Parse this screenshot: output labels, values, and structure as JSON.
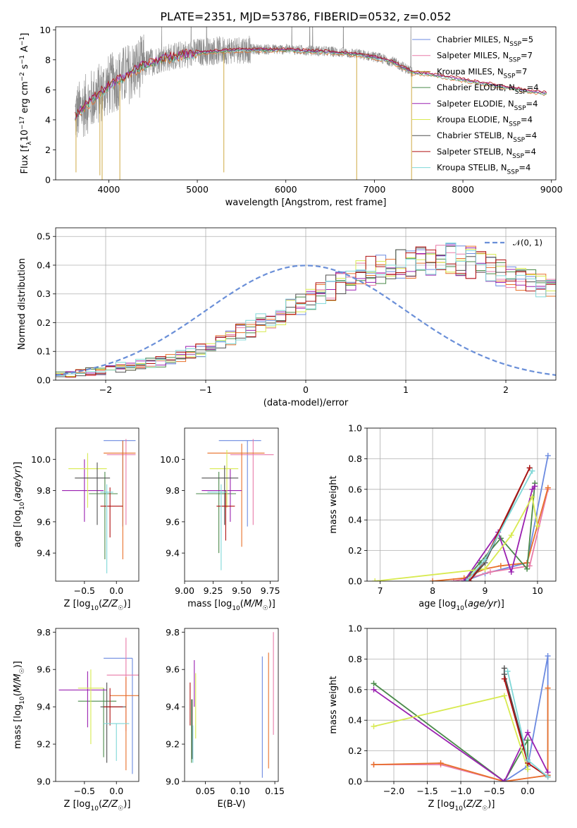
{
  "figure": {
    "title": "PLATE=2351, MJD=53786, FIBERID=0532, z=0.052"
  },
  "series_styles": [
    {
      "name": "Chabrier MILES, N_SSP=5",
      "label": "Chabrier MILES, N",
      "sub": "SSP",
      "tail": "=5",
      "color": "#6b8ae0"
    },
    {
      "name": "Salpeter MILES, N_SSP=7",
      "label": "Salpeter MILES, N",
      "sub": "SSP",
      "tail": "=7",
      "color": "#e87aa8"
    },
    {
      "name": "Kroupa MILES, N_SSP=7",
      "label": "Kroupa MILES, N",
      "sub": "SSP",
      "tail": "=7",
      "color": "#b07a20"
    },
    {
      "name": "Chabrier ELODIE, N_SSP=4",
      "label": "Chabrier ELODIE, N",
      "sub": "SSP",
      "tail": "=4",
      "color": "#4a8a4a"
    },
    {
      "name": "Salpeter ELODIE, N_SSP=4",
      "label": "Salpeter ELODIE, N",
      "sub": "SSP",
      "tail": "=4",
      "color": "#9a20b0"
    },
    {
      "name": "Kroupa ELODIE, N_SSP=4",
      "label": "Kroupa ELODIE, N",
      "sub": "SSP",
      "tail": "=4",
      "color": "#d8ea50"
    },
    {
      "name": "Chabrier STELIB, N_SSP=4",
      "label": "Chabrier STELIB, N",
      "sub": "SSP",
      "tail": "=4",
      "color": "#505050"
    },
    {
      "name": "Salpeter STELIB, N_SSP=4",
      "label": "Salpeter STELIB, N",
      "sub": "SSP",
      "tail": "=4",
      "color": "#b01010"
    },
    {
      "name": "Kroupa STELIB, N_SSP=4",
      "label": "Kroupa STELIB, N",
      "sub": "SSP",
      "tail": "=4",
      "color": "#7fd8d8"
    }
  ],
  "extra_colors": {
    "orange": "#e8702a",
    "data_grey": "#888888",
    "normal_curve": "#6a8fd8"
  },
  "chart_data": [
    {
      "id": "spectrum",
      "type": "line",
      "xlabel": "wavelength [Angstrom, rest frame]",
      "ylabel": "Flux [f_λ10^-17 erg cm^-2 s^-1 A^-1]",
      "xlim": [
        3400,
        9050
      ],
      "ylim": [
        0,
        10.2
      ],
      "xticks": [
        4000,
        5000,
        6000,
        7000,
        8000,
        9000
      ],
      "yticks": [
        0,
        2,
        4,
        6,
        8,
        10
      ],
      "legend": "right",
      "grid": false,
      "data_range": [
        3620,
        7430
      ],
      "continuum_points": {
        "x": [
          3620,
          3700,
          3800,
          3900,
          4000,
          4200,
          4400,
          4600,
          4800,
          5000,
          5200,
          5500,
          6000,
          6500,
          6800,
          7000,
          7200,
          7430
        ],
        "y": [
          4.3,
          4.8,
          5.3,
          5.8,
          6.3,
          7.0,
          7.7,
          8.1,
          8.3,
          8.5,
          8.6,
          8.7,
          8.7,
          8.55,
          8.4,
          8.2,
          7.9,
          7.2
        ]
      },
      "model_extension": {
        "x": [
          7430,
          7600,
          7800,
          8000,
          8200,
          8500,
          8800,
          8950
        ],
        "y": [
          7.2,
          7.1,
          6.9,
          6.7,
          6.5,
          6.2,
          5.9,
          5.8
        ]
      }
    },
    {
      "id": "residual-histogram",
      "type": "step",
      "xlabel": "(data-model)/error",
      "ylabel": "Normed distribution",
      "xlim": [
        -2.5,
        2.5
      ],
      "ylim": [
        0,
        0.53
      ],
      "xticks": [
        -2,
        -1,
        0,
        1,
        2
      ],
      "yticks": [
        0.0,
        0.1,
        0.2,
        0.3,
        0.4,
        0.5
      ],
      "grid": true,
      "legend": "top-right",
      "curve_label": "𝒩(0, 1)",
      "bin_width": 0.1,
      "bins_start": -2.5,
      "base_values": [
        0.02,
        0.022,
        0.025,
        0.03,
        0.035,
        0.04,
        0.045,
        0.05,
        0.055,
        0.06,
        0.065,
        0.075,
        0.085,
        0.095,
        0.105,
        0.115,
        0.13,
        0.145,
        0.165,
        0.18,
        0.2,
        0.21,
        0.22,
        0.245,
        0.265,
        0.28,
        0.3,
        0.32,
        0.345,
        0.36,
        0.37,
        0.38,
        0.385,
        0.39,
        0.4,
        0.405,
        0.41,
        0.42,
        0.43,
        0.425,
        0.42,
        0.41,
        0.4,
        0.39,
        0.38,
        0.37,
        0.36,
        0.35,
        0.33,
        0.31,
        0.29,
        0.27,
        0.25,
        0.23,
        0.21,
        0.19,
        0.17,
        0.155,
        0.14,
        0.12,
        0.105,
        0.09,
        0.08,
        0.07,
        0.06,
        0.05,
        0.045,
        0.04,
        0.035,
        0.03,
        0.025,
        0.022,
        0.02,
        0.018
      ]
    },
    {
      "id": "age-vs-Z",
      "type": "errorbar",
      "xlabel": "Z [log10(Z/Z☉)]",
      "ylabel": "age  [log10(age/yr)]",
      "xlim": [
        -0.95,
        0.35
      ],
      "ylim": [
        9.22,
        10.2
      ],
      "xticks": [
        -0.5,
        0.0
      ],
      "yticks": [
        9.4,
        9.6,
        9.8,
        10.0
      ],
      "points": [
        {
          "x": 0.1,
          "y": 10.12,
          "xerr": [
            0.3,
            0.2
          ],
          "yerr": [
            0.55,
            0.0
          ],
          "series": 0
        },
        {
          "x": 0.15,
          "y": 10.03,
          "xerr": [
            0.3,
            0.15
          ],
          "yerr": [
            0.45,
            0.1
          ],
          "series": 1
        },
        {
          "x": 0.1,
          "y": 10.04,
          "xerr": [
            0.3,
            0.2
          ],
          "yerr": [
            0.68,
            0.08
          ],
          "series": 10
        },
        {
          "x": -0.18,
          "y": 9.78,
          "xerr": [
            0.25,
            0.2
          ],
          "yerr": [
            0.42,
            0.14
          ],
          "series": 3
        },
        {
          "x": -0.5,
          "y": 9.8,
          "xerr": [
            0.35,
            0.3
          ],
          "yerr": [
            0.2,
            0.2
          ],
          "series": 4
        },
        {
          "x": -0.45,
          "y": 9.94,
          "xerr": [
            0.3,
            0.3
          ],
          "yerr": [
            0.25,
            0.1
          ],
          "series": 5
        },
        {
          "x": -0.3,
          "y": 9.88,
          "xerr": [
            0.35,
            0.2
          ],
          "yerr": [
            0.3,
            0.1
          ],
          "series": 6
        },
        {
          "x": -0.1,
          "y": 9.7,
          "xerr": [
            0.15,
            0.2
          ],
          "yerr": [
            0.2,
            0.12
          ],
          "series": 7
        },
        {
          "x": -0.15,
          "y": 9.79,
          "xerr": [
            0.1,
            0.1
          ],
          "yerr": [
            0.52,
            0.05
          ],
          "series": 8
        }
      ]
    },
    {
      "id": "age-vs-mass",
      "type": "errorbar",
      "xlabel": "mass [log10(M/M☉)]",
      "ylabel": "",
      "xlim": [
        9.0,
        9.82
      ],
      "ylim": [
        9.22,
        10.2
      ],
      "xticks": [
        9.0,
        9.25,
        9.5,
        9.75
      ],
      "yticks": [
        9.4,
        9.6,
        9.8,
        10.0
      ],
      "points": [
        {
          "x": 9.55,
          "y": 10.12,
          "xerr": [
            0.25,
            0.12
          ],
          "yerr": [
            0.55,
            0.0
          ],
          "series": 0
        },
        {
          "x": 9.6,
          "y": 10.03,
          "xerr": [
            0.2,
            0.18
          ],
          "yerr": [
            0.45,
            0.1
          ],
          "series": 1
        },
        {
          "x": 9.5,
          "y": 10.04,
          "xerr": [
            0.3,
            0.2
          ],
          "yerr": [
            0.6,
            0.06
          ],
          "series": 10
        },
        {
          "x": 9.3,
          "y": 9.78,
          "xerr": [
            0.2,
            0.15
          ],
          "yerr": [
            0.38,
            0.14
          ],
          "series": 3
        },
        {
          "x": 9.4,
          "y": 9.8,
          "xerr": [
            0.25,
            0.1
          ],
          "yerr": [
            0.2,
            0.14
          ],
          "series": 4
        },
        {
          "x": 9.37,
          "y": 9.94,
          "xerr": [
            0.15,
            0.1
          ],
          "yerr": [
            0.25,
            0.12
          ],
          "series": 5
        },
        {
          "x": 9.35,
          "y": 9.88,
          "xerr": [
            0.2,
            0.12
          ],
          "yerr": [
            0.3,
            0.08
          ],
          "series": 6
        },
        {
          "x": 9.36,
          "y": 9.7,
          "xerr": [
            0.08,
            0.08
          ],
          "yerr": [
            0.22,
            0.1
          ],
          "series": 7
        },
        {
          "x": 9.32,
          "y": 9.79,
          "xerr": [
            0.12,
            0.05
          ],
          "yerr": [
            0.5,
            0.05
          ],
          "series": 8
        }
      ]
    },
    {
      "id": "massweight-vs-age",
      "type": "line",
      "xlabel": "age  [log10(age/yr)]",
      "ylabel": "mass weight",
      "xlim": [
        6.75,
        10.35
      ],
      "ylim": [
        0,
        1.0
      ],
      "xticks": [
        7,
        8,
        9,
        10
      ],
      "yticks": [
        0.0,
        0.2,
        0.4,
        0.6,
        0.8,
        1.0
      ],
      "grid": true,
      "series": [
        {
          "style": 0,
          "x": [
            8.6,
            9.0,
            9.8,
            10.2
          ],
          "y": [
            0.0,
            0.05,
            0.12,
            0.82
          ]
        },
        {
          "style": 1,
          "x": [
            8.4,
            8.7,
            9.1,
            9.85,
            10.2
          ],
          "y": [
            0.0,
            0.02,
            0.06,
            0.1,
            0.6
          ]
        },
        {
          "style": 10,
          "x": [
            8.0,
            8.6,
            9.0,
            9.3,
            9.8,
            10.2
          ],
          "y": [
            0.0,
            0.02,
            0.08,
            0.1,
            0.12,
            0.61
          ]
        },
        {
          "style": 3,
          "x": [
            8.6,
            8.9,
            9.3,
            9.8,
            9.95
          ],
          "y": [
            0.0,
            0.12,
            0.28,
            0.08,
            0.64
          ]
        },
        {
          "style": 4,
          "x": [
            8.6,
            9.25,
            9.5,
            9.9,
            9.95
          ],
          "y": [
            0.0,
            0.32,
            0.06,
            0.6,
            0.62
          ]
        },
        {
          "style": 5,
          "x": [
            6.9,
            9.0,
            9.5,
            9.9,
            10.0
          ],
          "y": [
            0.0,
            0.08,
            0.3,
            0.55,
            0.36
          ]
        },
        {
          "style": 6,
          "x": [
            8.7,
            9.0,
            9.85
          ],
          "y": [
            0.0,
            0.12,
            0.74
          ]
        },
        {
          "style": 7,
          "x": [
            8.7,
            9.0,
            9.85
          ],
          "y": [
            0.0,
            0.14,
            0.74
          ]
        },
        {
          "style": 8,
          "x": [
            8.65,
            9.0,
            9.9
          ],
          "y": [
            0.0,
            0.14,
            0.72
          ]
        }
      ]
    },
    {
      "id": "mass-vs-Z",
      "type": "errorbar",
      "xlabel": "Z [log10(Z/Z☉)]",
      "ylabel": "mass [log10(M/M☉)]",
      "xlim": [
        -0.95,
        0.35
      ],
      "ylim": [
        9.0,
        9.82
      ],
      "xticks": [
        -0.5,
        0.0
      ],
      "yticks": [
        9.0,
        9.2,
        9.4,
        9.6,
        9.8
      ],
      "points": [
        {
          "x": 0.25,
          "y": 9.66,
          "xerr": [
            0.45,
            0.0
          ],
          "yerr": [
            0.62,
            0.0
          ],
          "series": 0
        },
        {
          "x": 0.15,
          "y": 9.57,
          "xerr": [
            0.3,
            0.2
          ],
          "yerr": [
            0.3,
            0.2
          ],
          "series": 1
        },
        {
          "x": 0.15,
          "y": 9.46,
          "xerr": [
            0.25,
            0.2
          ],
          "yerr": [
            0.4,
            0.1
          ],
          "series": 10
        },
        {
          "x": -0.2,
          "y": 9.43,
          "xerr": [
            0.4,
            0.2
          ],
          "yerr": [
            0.3,
            0.07
          ],
          "series": 3
        },
        {
          "x": -0.45,
          "y": 9.49,
          "xerr": [
            0.45,
            0.3
          ],
          "yerr": [
            0.2,
            0.1
          ],
          "series": 4
        },
        {
          "x": -0.4,
          "y": 9.5,
          "xerr": [
            0.2,
            0.2
          ],
          "yerr": [
            0.3,
            0.1
          ],
          "series": 5
        },
        {
          "x": -0.15,
          "y": 9.4,
          "xerr": [
            0.1,
            0.3
          ],
          "yerr": [
            0.3,
            0.13
          ],
          "series": 6
        },
        {
          "x": -0.1,
          "y": 9.4,
          "xerr": [
            0.1,
            0.2
          ],
          "yerr": [
            0.1,
            0.1
          ],
          "series": 7
        },
        {
          "x": 0.0,
          "y": 9.31,
          "xerr": [
            0.2,
            0.2
          ],
          "yerr": [
            0.2,
            0.0
          ],
          "series": 8
        }
      ]
    },
    {
      "id": "mass-vs-ebv",
      "type": "errorbar",
      "xlabel": "E(B-V)",
      "ylabel": "",
      "xlim": [
        0.02,
        0.155
      ],
      "ylim": [
        9.0,
        9.82
      ],
      "xticks": [
        0.05,
        0.1,
        0.15
      ],
      "yticks": [
        9.0,
        9.2,
        9.4,
        9.6,
        9.8
      ],
      "points": [
        {
          "x": 0.132,
          "y": 9.4,
          "xerr": [
            0,
            0
          ],
          "yerr": [
            0.38,
            0.27
          ],
          "series": 0
        },
        {
          "x": 0.148,
          "y": 9.5,
          "xerr": [
            0,
            0
          ],
          "yerr": [
            0.25,
            0.3
          ],
          "series": 1
        },
        {
          "x": 0.141,
          "y": 9.4,
          "xerr": [
            0,
            0
          ],
          "yerr": [
            0.33,
            0.29
          ],
          "series": 10
        },
        {
          "x": 0.03,
          "y": 9.27,
          "xerr": [
            0,
            0
          ],
          "yerr": [
            0.17,
            0.17
          ],
          "series": 3
        },
        {
          "x": 0.034,
          "y": 9.5,
          "xerr": [
            0,
            0
          ],
          "yerr": [
            0.1,
            0.15
          ],
          "series": 4
        },
        {
          "x": 0.036,
          "y": 9.4,
          "xerr": [
            0,
            0
          ],
          "yerr": [
            0.17,
            0.18
          ],
          "series": 5
        },
        {
          "x": 0.031,
          "y": 9.32,
          "xerr": [
            0,
            0
          ],
          "yerr": [
            0.2,
            0.12
          ],
          "series": 6
        },
        {
          "x": 0.028,
          "y": 9.42,
          "xerr": [
            0,
            0
          ],
          "yerr": [
            0.12,
            0.11
          ],
          "series": 7
        },
        {
          "x": 0.032,
          "y": 9.2,
          "xerr": [
            0,
            0
          ],
          "yerr": [
            0.1,
            0.1
          ],
          "series": 8
        }
      ]
    },
    {
      "id": "massweight-vs-Z",
      "type": "line",
      "xlabel": "Z [log10(Z/Z☉)]",
      "ylabel": "mass weight",
      "xlim": [
        -2.4,
        0.42
      ],
      "ylim": [
        0,
        1.0
      ],
      "xticks": [
        -2.0,
        -1.5,
        -1.0,
        -0.5,
        0.0
      ],
      "yticks": [
        0.0,
        0.2,
        0.4,
        0.6,
        0.8,
        1.0
      ],
      "grid": true,
      "series": [
        {
          "style": 0,
          "x": [
            -0.35,
            0.0,
            0.3,
            0.3
          ],
          "y": [
            0.0,
            0.1,
            0.82,
            0.04
          ]
        },
        {
          "style": 1,
          "x": [
            -2.3,
            -1.3,
            -0.35,
            0.3
          ],
          "y": [
            0.11,
            0.11,
            0.0,
            0.04
          ]
        },
        {
          "style": 10,
          "x": [
            -2.3,
            -1.3,
            -0.35,
            0.3,
            0.3
          ],
          "y": [
            0.11,
            0.12,
            0.0,
            0.04,
            0.61
          ]
        },
        {
          "style": 3,
          "x": [
            -2.3,
            -0.35,
            0.0,
            0.0
          ],
          "y": [
            0.64,
            0.0,
            0.27,
            0.08
          ]
        },
        {
          "style": 4,
          "x": [
            -2.3,
            -0.35,
            0.0,
            0.3
          ],
          "y": [
            0.6,
            0.0,
            0.32,
            0.06
          ]
        },
        {
          "style": 5,
          "x": [
            -2.3,
            -0.35,
            0.0
          ],
          "y": [
            0.36,
            0.56,
            0.08
          ]
        },
        {
          "style": 6,
          "x": [
            -0.35,
            -0.35,
            0.0
          ],
          "y": [
            0.74,
            0.7,
            0.14
          ]
        },
        {
          "style": 7,
          "x": [
            -0.35,
            0.0,
            0.3
          ],
          "y": [
            0.67,
            0.12,
            0.03
          ]
        },
        {
          "style": 8,
          "x": [
            -0.3,
            0.0,
            0.3
          ],
          "y": [
            0.72,
            0.14,
            0.03
          ]
        }
      ]
    }
  ]
}
